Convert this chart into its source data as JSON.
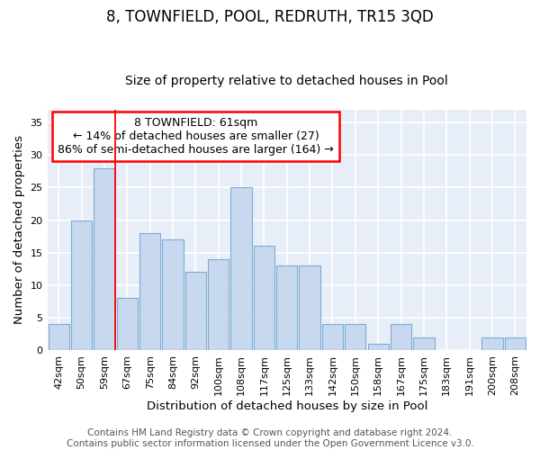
{
  "title": "8, TOWNFIELD, POOL, REDRUTH, TR15 3QD",
  "subtitle": "Size of property relative to detached houses in Pool",
  "xlabel": "Distribution of detached houses by size in Pool",
  "ylabel": "Number of detached properties",
  "categories": [
    "42sqm",
    "50sqm",
    "59sqm",
    "67sqm",
    "75sqm",
    "84sqm",
    "92sqm",
    "100sqm",
    "108sqm",
    "117sqm",
    "125sqm",
    "133sqm",
    "142sqm",
    "150sqm",
    "158sqm",
    "167sqm",
    "175sqm",
    "183sqm",
    "191sqm",
    "200sqm",
    "208sqm"
  ],
  "values": [
    4,
    20,
    28,
    8,
    18,
    17,
    12,
    14,
    25,
    16,
    13,
    13,
    4,
    4,
    1,
    4,
    2,
    0,
    0,
    2,
    2
  ],
  "bar_color": "#c8d8ee",
  "bar_edge_color": "#7aadd4",
  "ylim": [
    0,
    37
  ],
  "yticks": [
    0,
    5,
    10,
    15,
    20,
    25,
    30,
    35
  ],
  "red_line_index": 2,
  "annotation_line1": "8 TOWNFIELD: 61sqm",
  "annotation_line2": "← 14% of detached houses are smaller (27)",
  "annotation_line3": "86% of semi-detached houses are larger (164) →",
  "footer_line1": "Contains HM Land Registry data © Crown copyright and database right 2024.",
  "footer_line2": "Contains public sector information licensed under the Open Government Licence v3.0.",
  "fig_background": "#ffffff",
  "plot_background": "#e8eef8",
  "grid_color": "#ffffff",
  "title_fontsize": 12,
  "subtitle_fontsize": 10,
  "axis_label_fontsize": 9.5,
  "tick_fontsize": 8,
  "annotation_fontsize": 9,
  "footer_fontsize": 7.5
}
